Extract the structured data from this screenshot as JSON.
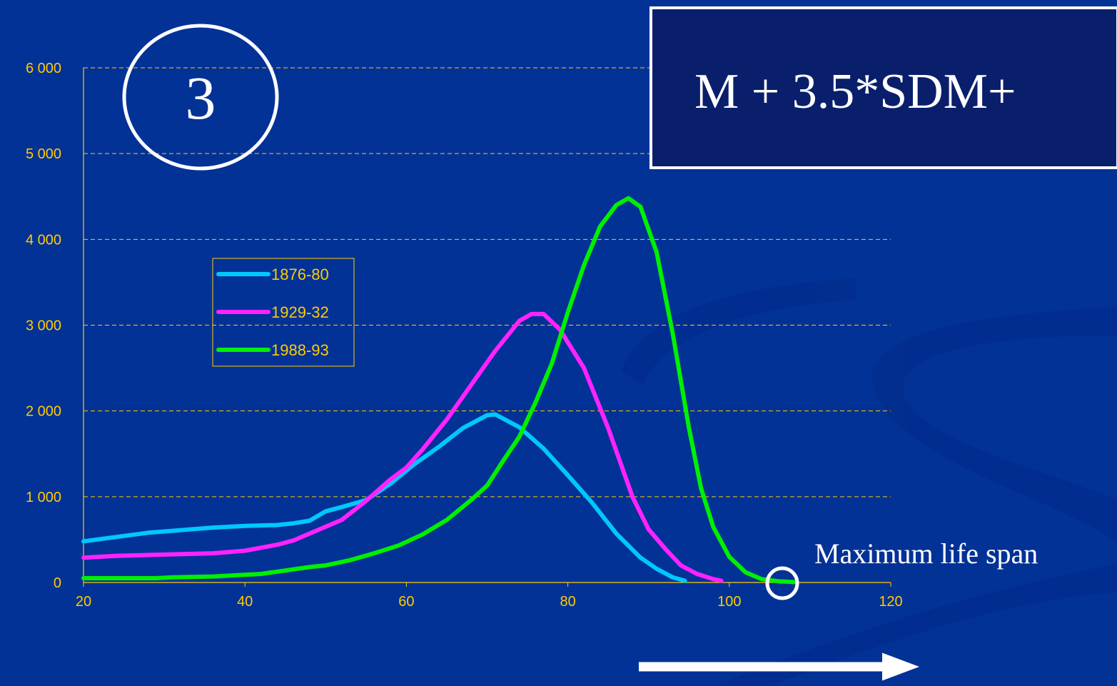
{
  "slide": {
    "badge_number": "3",
    "formula": "M + 3.5*SDM+",
    "annotation": "Maximum life span"
  },
  "colors": {
    "background": "#033297",
    "axis_text": "#ffcc00",
    "grid": "#ffcc00",
    "frame": "#ffffff"
  },
  "chart_data": {
    "type": "line",
    "title": "",
    "xlabel": "",
    "ylabel": "",
    "xlim": [
      20,
      120
    ],
    "ylim": [
      0,
      6000
    ],
    "x_ticks": [
      20,
      40,
      60,
      80,
      100,
      120
    ],
    "y_ticks": [
      0,
      1000,
      2000,
      3000,
      4000,
      5000,
      6000
    ],
    "y_tick_labels": [
      "0",
      "1 000",
      "2 000",
      "3 000",
      "4 000",
      "5 000",
      "6 000"
    ],
    "grid": "horizontal dashed",
    "legend_position": "upper-left inside plot",
    "series": [
      {
        "name": "1876-80",
        "color": "#00c8ff",
        "points": [
          [
            20,
            480
          ],
          [
            24,
            530
          ],
          [
            28,
            580
          ],
          [
            32,
            610
          ],
          [
            36,
            640
          ],
          [
            40,
            660
          ],
          [
            44,
            670
          ],
          [
            46,
            690
          ],
          [
            48,
            720
          ],
          [
            50,
            830
          ],
          [
            52,
            880
          ],
          [
            55,
            960
          ],
          [
            58,
            1150
          ],
          [
            61,
            1380
          ],
          [
            64,
            1580
          ],
          [
            67,
            1800
          ],
          [
            70,
            1950
          ],
          [
            71,
            1960
          ],
          [
            74,
            1810
          ],
          [
            77,
            1560
          ],
          [
            80,
            1250
          ],
          [
            83,
            930
          ],
          [
            86,
            570
          ],
          [
            89,
            290
          ],
          [
            91,
            160
          ],
          [
            93,
            60
          ],
          [
            94.5,
            20
          ]
        ]
      },
      {
        "name": "1929-32",
        "color": "#ff22ff",
        "points": [
          [
            20,
            290
          ],
          [
            24,
            310
          ],
          [
            28,
            320
          ],
          [
            32,
            330
          ],
          [
            36,
            340
          ],
          [
            40,
            370
          ],
          [
            44,
            440
          ],
          [
            46,
            490
          ],
          [
            48,
            570
          ],
          [
            50,
            650
          ],
          [
            52,
            730
          ],
          [
            55,
            950
          ],
          [
            58,
            1200
          ],
          [
            60,
            1340
          ],
          [
            62,
            1550
          ],
          [
            65,
            1900
          ],
          [
            68,
            2300
          ],
          [
            71,
            2700
          ],
          [
            74,
            3050
          ],
          [
            75.5,
            3130
          ],
          [
            77,
            3130
          ],
          [
            79,
            2950
          ],
          [
            82,
            2500
          ],
          [
            85,
            1800
          ],
          [
            88,
            1000
          ],
          [
            90,
            620
          ],
          [
            92,
            400
          ],
          [
            94,
            200
          ],
          [
            96,
            100
          ],
          [
            98,
            40
          ],
          [
            99,
            20
          ]
        ]
      },
      {
        "name": "1988-93",
        "color": "#00f000",
        "points": [
          [
            20,
            50
          ],
          [
            25,
            50
          ],
          [
            29,
            50
          ],
          [
            31,
            60
          ],
          [
            36,
            70
          ],
          [
            38,
            80
          ],
          [
            42,
            100
          ],
          [
            45,
            140
          ],
          [
            48,
            180
          ],
          [
            50,
            200
          ],
          [
            53,
            260
          ],
          [
            56,
            340
          ],
          [
            59,
            430
          ],
          [
            62,
            560
          ],
          [
            65,
            730
          ],
          [
            68,
            960
          ],
          [
            70,
            1130
          ],
          [
            72,
            1420
          ],
          [
            74,
            1700
          ],
          [
            76,
            2100
          ],
          [
            78,
            2550
          ],
          [
            80,
            3150
          ],
          [
            82,
            3700
          ],
          [
            84,
            4150
          ],
          [
            86,
            4400
          ],
          [
            87.5,
            4480
          ],
          [
            89,
            4380
          ],
          [
            91,
            3850
          ],
          [
            93,
            2900
          ],
          [
            95,
            1800
          ],
          [
            96.5,
            1100
          ],
          [
            98,
            650
          ],
          [
            100,
            300
          ],
          [
            102,
            120
          ],
          [
            104,
            40
          ],
          [
            106,
            15
          ],
          [
            108,
            5
          ]
        ]
      }
    ]
  }
}
